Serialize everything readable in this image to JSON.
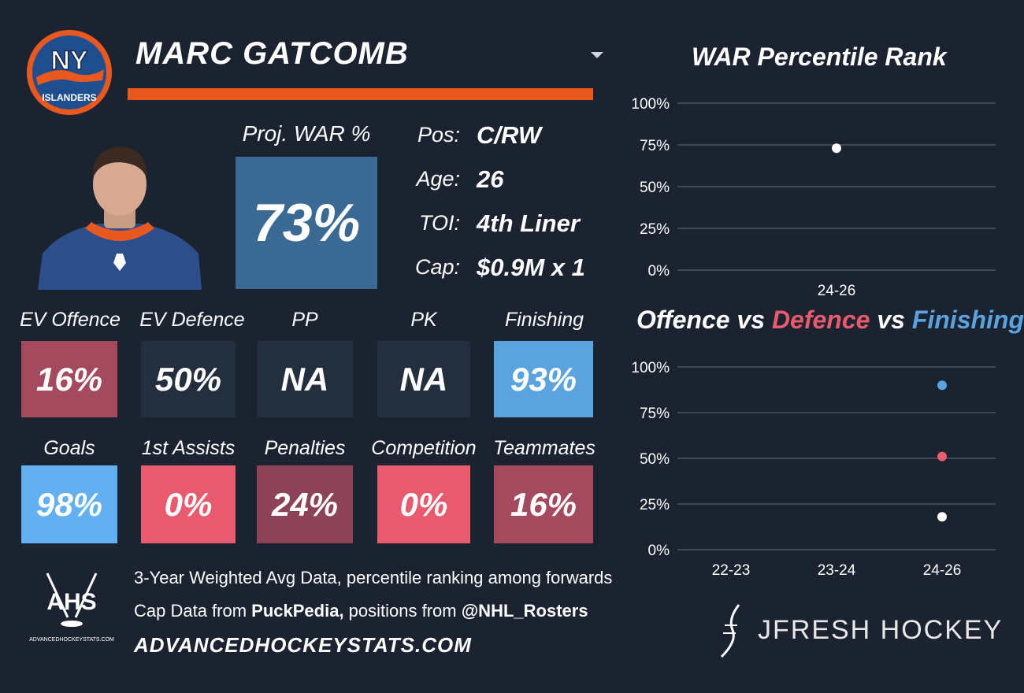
{
  "player": {
    "name": "MARC GATCOMB",
    "team_logo": {
      "top": "NY",
      "bottom": "ISLANDERS"
    },
    "proj_war_label": "Proj. WAR %",
    "proj_war_value": "73%",
    "info": [
      {
        "label": "Pos:",
        "value": "C/RW"
      },
      {
        "label": "Age:",
        "value": "26"
      },
      {
        "label": "TOI:",
        "value": "4th Liner"
      },
      {
        "label": "Cap:",
        "value": "$0.9M x 1"
      }
    ]
  },
  "stats_row1": [
    {
      "label": "EV Offence",
      "value": "16%",
      "color": "#a44a5e"
    },
    {
      "label": "EV Defence",
      "value": "50%",
      "color": "#232e3e"
    },
    {
      "label": "PP",
      "value": "NA",
      "color": "#232e3e"
    },
    {
      "label": "PK",
      "value": "NA",
      "color": "#232e3e"
    },
    {
      "label": "Finishing",
      "value": "93%",
      "color": "#5ba3de"
    }
  ],
  "stats_row2": [
    {
      "label": "Goals",
      "value": "98%",
      "color": "#63b0f1"
    },
    {
      "label": "1st Assists",
      "value": "0%",
      "color": "#e85a6d"
    },
    {
      "label": "Penalties",
      "value": "24%",
      "color": "#8d4357"
    },
    {
      "label": "Competition",
      "value": "0%",
      "color": "#e85a6d"
    },
    {
      "label": "Teammates",
      "value": "16%",
      "color": "#a44a5e"
    }
  ],
  "footer": {
    "ahs_logo_text": "AHS",
    "ahs_logo_sub": "ADVANCEDHOCKEYSTATS.COM",
    "line1": "3-Year Weighted Avg Data, percentile ranking among forwards",
    "line2_prefix": "Cap Data from ",
    "line2_source": "PuckPedia,",
    "line2_mid": " positions from ",
    "line2_handle": "@NHL_Rosters",
    "site": "ADVANCEDHOCKEYSTATS.COM",
    "brand": "JFRESH HOCKEY"
  },
  "chart_data": [
    {
      "type": "scatter",
      "title": "WAR Percentile Rank",
      "categories": [
        "24-26"
      ],
      "yticks": [
        "100%",
        "75%",
        "50%",
        "25%",
        "0%"
      ],
      "ylim": [
        0,
        100
      ],
      "grid": true,
      "series": [
        {
          "values": [
            73
          ],
          "color": "#ffffff"
        }
      ]
    },
    {
      "type": "scatter",
      "title_parts": [
        "Offence",
        " vs ",
        "Defence",
        " vs ",
        "Finishing"
      ],
      "title_colors": [
        "#ffffff",
        "#ffffff",
        "#e85a6d",
        "#ffffff",
        "#5ba3de"
      ],
      "categories": [
        "22-23",
        "23-24",
        "24-26"
      ],
      "yticks": [
        "100%",
        "75%",
        "50%",
        "25%",
        "0%"
      ],
      "ylim": [
        0,
        100
      ],
      "grid": true,
      "series": [
        {
          "values": [
            null,
            null,
            18
          ],
          "color": "#ffffff"
        },
        {
          "values": [
            null,
            null,
            51
          ],
          "color": "#e85a6d"
        },
        {
          "values": [
            null,
            null,
            90
          ],
          "color": "#5ba3de"
        }
      ]
    }
  ]
}
